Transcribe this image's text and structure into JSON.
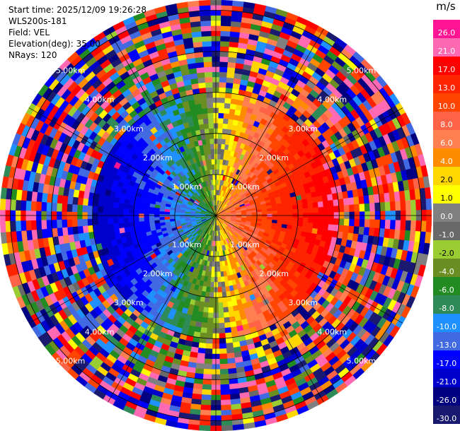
{
  "info": {
    "start_time": "Start time: 2025/12/09 19:26:28",
    "site": "WLS200s-181",
    "field": "Field: VEL",
    "elevation": "Elevation(deg): 35.00",
    "nrays": "NRays: 120"
  },
  "chart_data": {
    "type": "heatmap",
    "projection": "polar-ppi",
    "field": "VEL",
    "units": "m/s",
    "nrays": 120,
    "range_rings_km": [
      1.0,
      2.0,
      3.0,
      4.0,
      5.0
    ],
    "ring_labels": [
      "1.00km",
      "2.00km",
      "3.00km",
      "4.00km",
      "5.00km"
    ],
    "max_range_km": 5.25,
    "clean_range_km": 3.0,
    "velocity_pattern": {
      "max_toward_ms": 26.0,
      "max_away_ms": 21.0,
      "toward_direction": "west",
      "away_direction": "east"
    },
    "colorbar": {
      "title": "m/s",
      "ticks": [
        "26.0",
        "21.0",
        "17.0",
        "13.0",
        "10.0",
        "8.0",
        "6.0",
        "4.0",
        "2.0",
        "1.0",
        "0.0",
        "-1.0",
        "-2.0",
        "-4.0",
        "-6.0",
        "-8.0",
        "-10.0",
        "-13.0",
        "-17.0",
        "-21.0",
        "-26.0",
        "-30.0"
      ],
      "colors": [
        "#ff1493",
        "#ff69b4",
        "#ff0000",
        "#ff2400",
        "#ff4500",
        "#ff6347",
        "#ff7f50",
        "#ff8c00",
        "#ffd700",
        "#ffff00",
        "#808080",
        "#696969",
        "#9acd32",
        "#6b8e23",
        "#228b22",
        "#2e8b57",
        "#1e90ff",
        "#4169e1",
        "#0000ff",
        "#0000cd",
        "#000080",
        "#191970"
      ]
    }
  }
}
